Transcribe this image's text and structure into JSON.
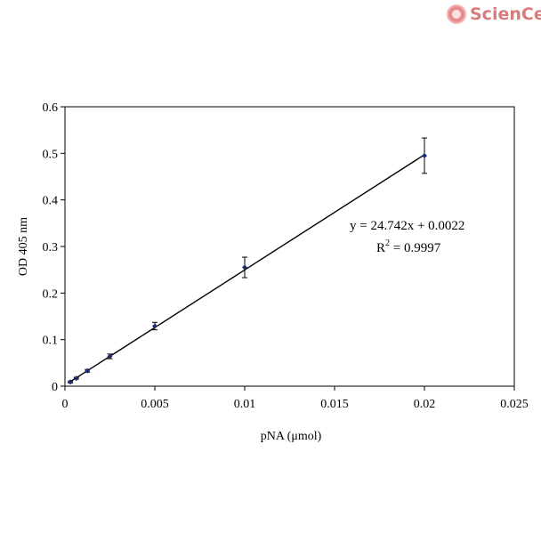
{
  "logo": {
    "text": "ScienCell",
    "icon": "sciencell-logo-icon",
    "color": "#d97b7b"
  },
  "chart_data": {
    "type": "scatter",
    "title": "",
    "xlabel": "pNA (μmol)",
    "ylabel": "OD 405 nm",
    "xlim": [
      0,
      0.025
    ],
    "ylim": [
      0,
      0.6
    ],
    "x_ticks": [
      0,
      0.005,
      0.01,
      0.015,
      0.02,
      0.025
    ],
    "x_tick_labels": [
      "0",
      "0.005",
      "0.01",
      "0.015",
      "0.02",
      "0.025"
    ],
    "y_ticks": [
      0,
      0.1,
      0.2,
      0.3,
      0.4,
      0.5,
      0.6
    ],
    "y_tick_labels": [
      "0",
      "0.1",
      "0.2",
      "0.3",
      "0.4",
      "0.5",
      "0.6"
    ],
    "grid": false,
    "series": [
      {
        "x": [
          0.0003,
          0.00063,
          0.00125,
          0.0025,
          0.005,
          0.01,
          0.02
        ],
        "y": [
          0.009,
          0.017,
          0.033,
          0.064,
          0.129,
          0.255,
          0.495
        ],
        "err": [
          0.002,
          0.002,
          0.003,
          0.005,
          0.008,
          0.022,
          0.038
        ],
        "color": "#1f2a6e"
      }
    ],
    "trendline": {
      "slope": 24.742,
      "intercept": 0.0022,
      "x_range": [
        0.0003,
        0.02
      ],
      "equation": "y = 24.742x + 0.0022",
      "r2_prefix": "R",
      "r2_sup": "2",
      "r2_value": " = 0.9997"
    }
  }
}
